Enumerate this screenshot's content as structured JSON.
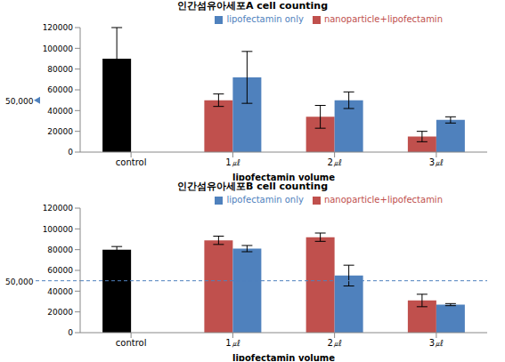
{
  "chart_data": [
    {
      "type": "bar",
      "title": "인간섬유아세포A cell counting",
      "x_label": "lipofectamin volume",
      "categories": [
        "control",
        "1㎕",
        "2㎕",
        "3㎕"
      ],
      "series": [
        {
          "name": "nanoparticle+lipofectamin",
          "color": "#c0504d",
          "colors": [
            "#000000",
            "#c0504d",
            "#c0504d",
            "#c0504d"
          ],
          "values": [
            90000,
            50000,
            34000,
            15000
          ],
          "errors": [
            30000,
            6000,
            11000,
            5000
          ]
        },
        {
          "name": "lipofectamin only",
          "color": "#4f81bd",
          "values": [
            null,
            72000,
            50000,
            31000
          ],
          "errors": [
            null,
            25000,
            8000,
            3000
          ]
        }
      ],
      "ylim": [
        0,
        120000
      ],
      "yticks": [
        0,
        20000,
        40000,
        60000,
        80000,
        100000,
        120000
      ],
      "grid": false,
      "legend": "top",
      "annotations": [
        {
          "text": "50,000",
          "y": 50000,
          "marker": "arrow"
        }
      ]
    },
    {
      "type": "bar",
      "title": "인간섬유아세포B cell counting",
      "x_label": "lipofectamin volume",
      "categories": [
        "control",
        "1㎕",
        "2㎕",
        "3㎕"
      ],
      "series": [
        {
          "name": "nanoparticle+lipofectamin",
          "color": "#c0504d",
          "colors": [
            "#000000",
            "#c0504d",
            "#c0504d",
            "#c0504d"
          ],
          "values": [
            80000,
            89000,
            92000,
            31000
          ],
          "errors": [
            3000,
            4000,
            4000,
            6000
          ]
        },
        {
          "name": "lipofectamin only",
          "color": "#4f81bd",
          "values": [
            null,
            81000,
            55000,
            27000
          ],
          "errors": [
            null,
            3000,
            10000,
            1000
          ]
        }
      ],
      "ylim": [
        0,
        120000
      ],
      "yticks": [
        0,
        20000,
        40000,
        60000,
        80000,
        100000,
        120000
      ],
      "grid": false,
      "legend": "top",
      "annotations": [
        {
          "text": "50,000",
          "y": 50000,
          "line_style": "dashed"
        }
      ]
    }
  ]
}
